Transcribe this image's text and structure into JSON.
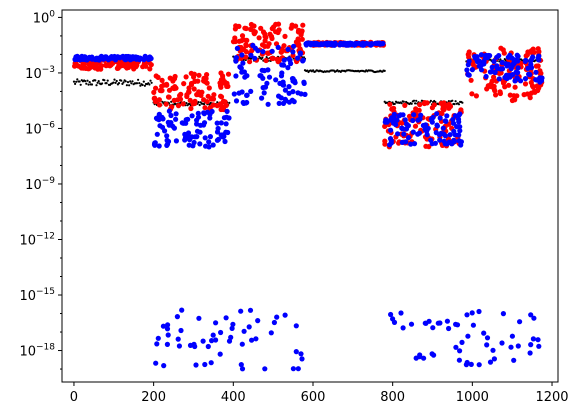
{
  "chart_data": {
    "type": "scatter",
    "title": "",
    "xlabel": "",
    "ylabel": "",
    "yscale": "log",
    "xlim": [
      -30,
      1215
    ],
    "ylim_exponent": [
      -19.7,
      0.4
    ],
    "grid": false,
    "legend": "none",
    "x_ticks": [
      {
        "value": 0,
        "label": "0"
      },
      {
        "value": 200,
        "label": "200"
      },
      {
        "value": 400,
        "label": "400"
      },
      {
        "value": 600,
        "label": "600"
      },
      {
        "value": 800,
        "label": "800"
      },
      {
        "value": 1000,
        "label": "1000"
      },
      {
        "value": 1200,
        "label": "1200"
      }
    ],
    "y_ticks": [
      {
        "exponent": 0,
        "base": "10",
        "sup": "0"
      },
      {
        "exponent": -3,
        "base": "10",
        "sup": "−3"
      },
      {
        "exponent": -6,
        "base": "10",
        "sup": "−6"
      },
      {
        "exponent": -9,
        "base": "10",
        "sup": "−9"
      },
      {
        "exponent": -12,
        "base": "10",
        "sup": "−12"
      },
      {
        "exponent": -15,
        "base": "10",
        "sup": "−15"
      },
      {
        "exponent": -18,
        "base": "10",
        "sup": "−18"
      }
    ],
    "series_styles": [
      {
        "color": "#ff0000",
        "marker_radius": 2.6
      },
      {
        "color": "#0000ff",
        "marker_radius": 2.6
      },
      {
        "color": "#000000",
        "marker_radius": 1.1
      }
    ],
    "segments": [
      {
        "x_start": 0,
        "x_end": 195,
        "red_exp": [
          -2.8,
          -2.3
        ],
        "blue_exp": [
          -2.3,
          -2.1
        ],
        "black_exp": [
          -3.7,
          -3.35
        ]
      },
      {
        "x_start": 200,
        "x_end": 390,
        "red_exp": [
          -5.0,
          -3.0
        ],
        "blue_exp": [
          -7.0,
          -5.0
        ],
        "black_exp": [
          -4.75,
          -4.55
        ]
      },
      {
        "x_start": 400,
        "x_end": 580,
        "red_exp": [
          -2.4,
          -0.3
        ],
        "blue_exp": [
          -4.7,
          -1.5
        ],
        "black_exp": [
          -2.35,
          -2.1
        ]
      },
      {
        "x_start": 580,
        "x_end": 780,
        "red_exp": [
          -1.5,
          -1.35
        ],
        "blue_exp": [
          -1.5,
          -1.38
        ],
        "black_exp": [
          -2.95,
          -2.85
        ]
      },
      {
        "x_start": 780,
        "x_end": 975,
        "red_exp": [
          -7.0,
          -4.6
        ],
        "blue_exp": [
          -6.9,
          -5.2
        ],
        "black_exp": [
          -4.7,
          -4.5
        ]
      },
      {
        "x_start": 985,
        "x_end": 1175,
        "red_exp": [
          -4.5,
          -1.6
        ],
        "blue_exp": [
          -3.5,
          -2.0
        ],
        "black_exp": [
          -2.4,
          -2.25
        ]
      }
    ],
    "low_blue_clusters": [
      {
        "x_start": 200,
        "x_end": 580,
        "exp": [
          -19.0,
          -15.8
        ]
      },
      {
        "x_start": 785,
        "x_end": 1175,
        "exp": [
          -18.8,
          -15.8
        ]
      }
    ],
    "point_counts": {
      "per_segment_red": 110,
      "per_segment_blue": 90,
      "per_segment_black": 70,
      "per_low_cluster": 55
    }
  }
}
